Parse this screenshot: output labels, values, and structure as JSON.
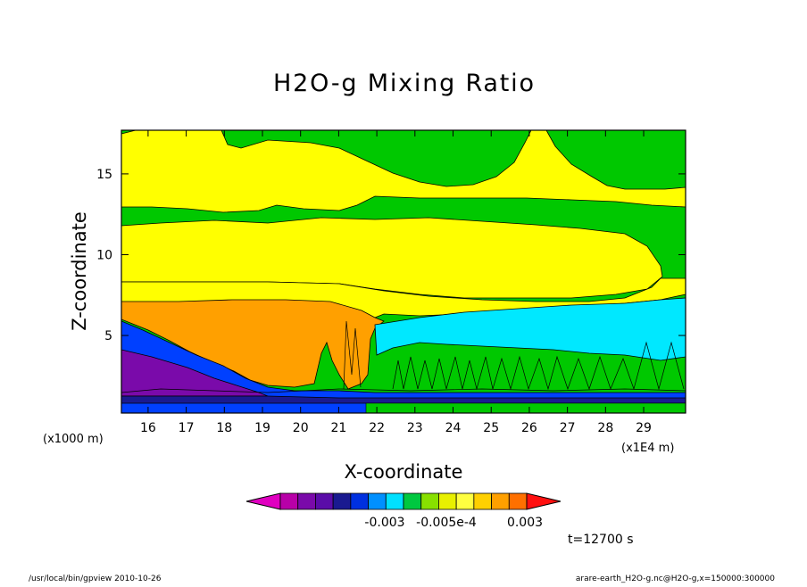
{
  "chart_data": {
    "type": "heatmap",
    "title": "H2O-g Mixing Ratio",
    "xlabel": "X-coordinate",
    "ylabel": "Z-coordinate",
    "x_unit_left": "(x1000 m)",
    "x_unit_right": "(x1E4 m)",
    "x_ticks": [
      "16",
      "17",
      "18",
      "19",
      "20",
      "21",
      "22",
      "23",
      "24",
      "25",
      "26",
      "27",
      "28",
      "29"
    ],
    "y_ticks": [
      "5",
      "10",
      "15"
    ],
    "x_tick_values": [
      16,
      17,
      18,
      19,
      20,
      21,
      22,
      23,
      24,
      25,
      26,
      27,
      28,
      29
    ],
    "y_tick_values": [
      5,
      10,
      15
    ],
    "xlim": [
      15.3,
      30.1
    ],
    "ylim": [
      0.2,
      17.7
    ],
    "colorbar": {
      "colors": [
        "#e000c0",
        "#b800a8",
        "#7a0aaa",
        "#5a0ca8",
        "#1a1a90",
        "#0030e0",
        "#0090ff",
        "#00e0ff",
        "#00c840",
        "#88e000",
        "#e8f000",
        "#ffff40",
        "#ffd000",
        "#ffa000",
        "#ff7000",
        "#ff1010"
      ],
      "labels": [
        "-0.003",
        "-0.005e-4",
        "0.003"
      ]
    },
    "regions": [
      {
        "name": "upper-moist-band",
        "color": "#ffff00",
        "z_range": [
          12.0,
          17.7
        ]
      },
      {
        "name": "mid-moist-band",
        "color": "#ffff00",
        "z_range": [
          8.3,
          11.4
        ]
      },
      {
        "name": "low-orange-layer",
        "color": "#ffa000",
        "z_range": [
          0.2,
          7.0
        ]
      },
      {
        "name": "east-cyan-layer",
        "color": "#00e8ff",
        "z_range": [
          2.5,
          6.5
        ]
      }
    ]
  },
  "time_label": "t=12700 s",
  "footer_left": "/usr/local/bin/gpview  2010-10-26",
  "footer_right": "arare-earth_H2O-g.nc@H2O-g,x=150000:300000"
}
